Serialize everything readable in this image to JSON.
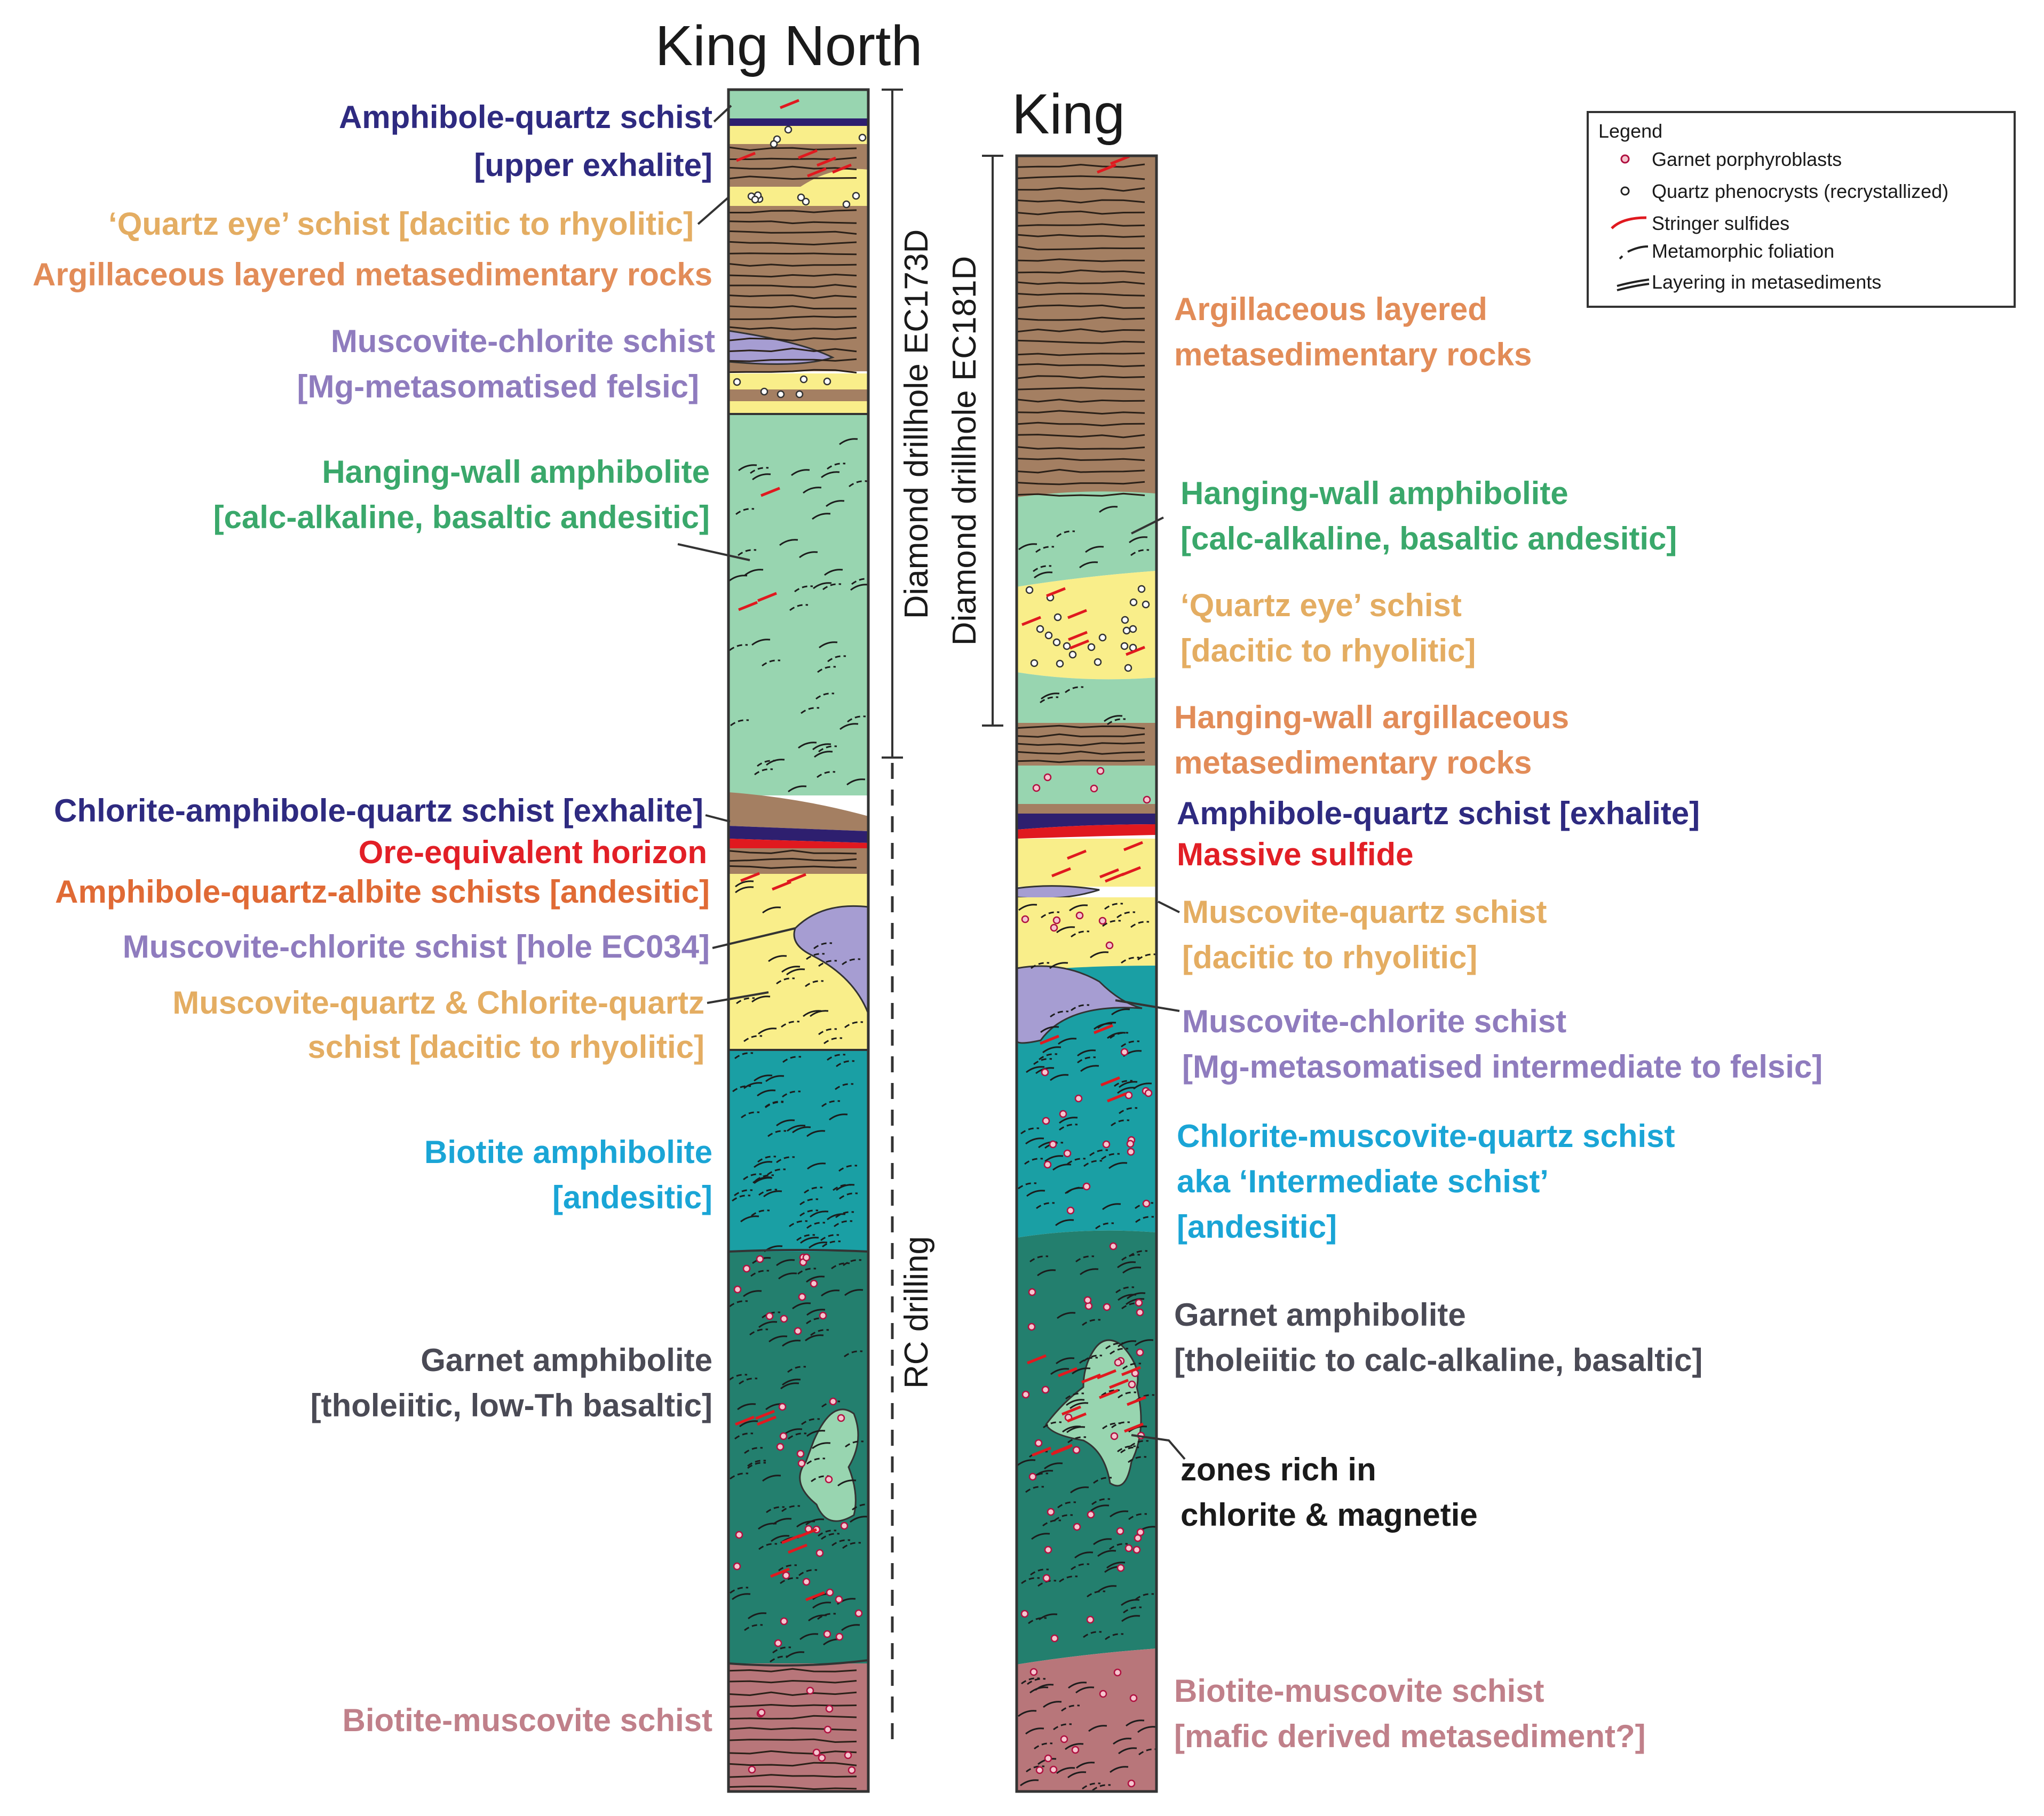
{
  "colors": {
    "green_pale": "#98d5b0",
    "brown": "#a47f62",
    "yellow": "#f9ee8a",
    "purple_pale": "#a69dd2",
    "dark_blue": "#2e1f6f",
    "red": "#e0191f",
    "teal": "#1a9fa4",
    "dark_teal": "#237f6e",
    "mauve": "#b8767a",
    "label_purple": "#2e2a80",
    "label_tan": "#e4ad62",
    "label_orange": "#e28c58",
    "label_lavender": "#8f7cbe",
    "label_green": "#3aa86b",
    "label_red": "#e21f26",
    "label_darkorange": "#e06a35",
    "label_blue": "#1aa5d6",
    "label_grey": "#4a4a55",
    "label_rose": "#c0808a"
  },
  "titles": {
    "left": "King North",
    "right": "King"
  },
  "drillholes": {
    "left_diamond": "Diamond drillhole EC173D",
    "left_rc": "RC drilling",
    "right_diamond": "Diamond drillhole EC181D"
  },
  "legend": {
    "title": "Legend",
    "items": [
      {
        "icon": "garnet-icon",
        "text": "Garnet porphyroblasts"
      },
      {
        "icon": "quartz-icon",
        "text": "Quartz phenocrysts (recrystallized)"
      },
      {
        "icon": "stringer-icon",
        "text": "Stringer sulfides"
      },
      {
        "icon": "foliation-icon",
        "text": "Metamorphic foliation"
      },
      {
        "icon": "layering-icon",
        "text": "Layering in metasediments"
      }
    ]
  },
  "left_labels": {
    "amph_qtz_1": "Amphibole-quartz schist",
    "amph_qtz_2": "[upper exhalite]",
    "quartz_eye": "‘Quartz eye’ schist [dacitic to rhyolitic]",
    "argillaceous": "Argillaceous layered metasedimentary rocks",
    "musc_chl_1": "Muscovite-chlorite schist",
    "musc_chl_2": "[Mg-metasomatised felsic]",
    "hw_amph_1": "Hanging-wall amphibolite",
    "hw_amph_2": "[calc-alkaline, basaltic andesitic]",
    "chl_amph": "Chlorite-amphibole-quartz schist [exhalite]",
    "ore": "Ore-equivalent horizon",
    "amph_albite": "Amphibole-quartz-albite schists [andesitic]",
    "musc_chl_hole": "Muscovite-chlorite schist [hole EC034]",
    "musc_qtz_1": "Muscovite-quartz & Chlorite-quartz",
    "musc_qtz_2": "schist [dacitic to rhyolitic]",
    "biotite_1": "Biotite amphibolite",
    "biotite_2": "[andesitic]",
    "garnet_1": "Garnet amphibolite",
    "garnet_2": "[tholeiitic, low-Th basaltic]",
    "bio_musc": "Biotite-muscovite schist"
  },
  "right_labels": {
    "argillaceous_1": "Argillaceous layered",
    "argillaceous_2": "metasedimentary rocks",
    "hw_amph_1": "Hanging-wall amphibolite",
    "hw_amph_2": "[calc-alkaline, basaltic andesitic]",
    "quartz_eye_1": "‘Quartz eye’ schist",
    "quartz_eye_2": "[dacitic to rhyolitic]",
    "hw_arg_1": "Hanging-wall argillaceous",
    "hw_arg_2": "metasedimentary rocks",
    "amph_qtz": "Amphibole-quartz schist [exhalite]",
    "massive": "Massive sulfide",
    "musc_qtz_1": "Muscovite-quartz schist",
    "musc_qtz_2": "[dacitic to rhyolitic]",
    "musc_chl_1": "Muscovite-chlorite schist",
    "musc_chl_2": "[Mg-metasomatised intermediate to felsic]",
    "chl_musc_1": "Chlorite-muscovite-quartz schist",
    "chl_musc_2": "aka ‘Intermediate schist’",
    "chl_musc_3": "[andesitic]",
    "garnet_1": "Garnet amphibolite",
    "garnet_2": "[tholeiitic to calc-alkaline, basaltic]",
    "zones_1": "zones rich in",
    "zones_2": "chlorite & magnetie",
    "bio_musc_1": "Biotite-muscovite schist",
    "bio_musc_2": "[mafic derived metasediment?]"
  }
}
